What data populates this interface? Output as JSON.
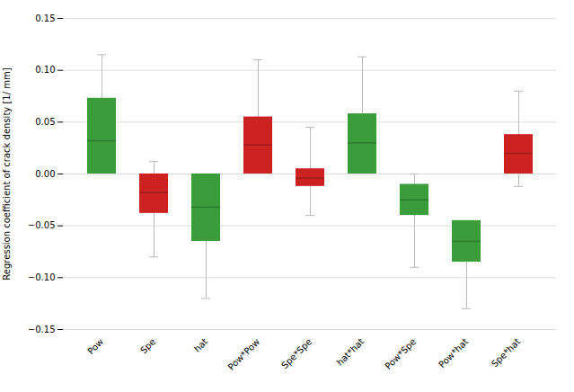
{
  "chart_data": {
    "type": "box",
    "ylabel": "Regression coefficient of crack density [1/ mm]",
    "categories": [
      "Pow",
      "Spe",
      "hat",
      "Pow*Pow",
      "Spe*Spe",
      "hat*hat",
      "Pow*Spe",
      "Pow*hat",
      "Spe*hat"
    ],
    "bar_bottoms": [
      0.0,
      -0.038,
      -0.065,
      0.0,
      -0.012,
      0.0,
      -0.04,
      -0.085,
      0.0
    ],
    "bar_tops": [
      0.073,
      0.0,
      0.0,
      0.055,
      0.005,
      0.058,
      -0.01,
      -0.045,
      0.038
    ],
    "medians": [
      0.032,
      -0.018,
      -0.032,
      0.028,
      -0.004,
      0.03,
      -0.025,
      -0.065,
      0.02
    ],
    "whisker_low": [
      0.032,
      -0.08,
      -0.12,
      0.032,
      -0.04,
      0.005,
      -0.09,
      -0.13,
      -0.012
    ],
    "whisker_high": [
      0.115,
      0.012,
      -0.012,
      0.11,
      0.045,
      0.113,
      0.0,
      -0.05,
      0.08
    ],
    "colors": [
      "#3a9c3a",
      "#cc2222",
      "#3a9c3a",
      "#cc2222",
      "#cc2222",
      "#3a9c3a",
      "#3a9c3a",
      "#3a9c3a",
      "#cc2222"
    ],
    "ylim": [
      -0.15,
      0.15
    ],
    "yticks": [
      {
        "value": -0.15,
        "label": "−0.15"
      },
      {
        "value": -0.1,
        "label": "−0.10"
      },
      {
        "value": -0.05,
        "label": "−0.05"
      },
      {
        "value": 0.0,
        "label": "0.00"
      },
      0.05,
      {
        "value": 0.1,
        "label": "0.10"
      },
      0.15
    ],
    "grid": true
  }
}
